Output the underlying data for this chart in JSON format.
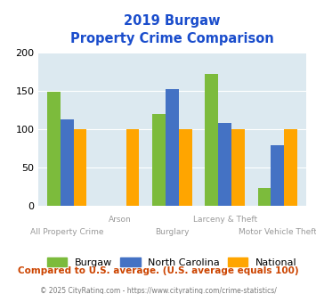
{
  "title_line1": "2019 Burgaw",
  "title_line2": "Property Crime Comparison",
  "categories": [
    "All Property Crime",
    "Arson",
    "Burglary",
    "Larceny & Theft",
    "Motor Vehicle Theft"
  ],
  "cat_labels_row1": [
    "All Property Crime",
    "",
    "Burglary",
    "",
    "Motor Vehicle Theft"
  ],
  "cat_labels_row2": [
    "",
    "Arson",
    "",
    "Larceny & Theft",
    ""
  ],
  "series": {
    "Burgaw": [
      149,
      0,
      120,
      173,
      23
    ],
    "North Carolina": [
      113,
      0,
      153,
      108,
      79
    ],
    "National": [
      100,
      100,
      100,
      100,
      100
    ]
  },
  "colors": {
    "Burgaw": "#7cbb3c",
    "North Carolina": "#4472c4",
    "National": "#ffa500"
  },
  "ylim": [
    0,
    200
  ],
  "yticks": [
    0,
    50,
    100,
    150,
    200
  ],
  "plot_bg": "#dce9f0",
  "title_color": "#1a4dcc",
  "subtitle_note": "Compared to U.S. average. (U.S. average equals 100)",
  "copyright": "© 2025 CityRating.com - https://www.cityrating.com/crime-statistics/",
  "note_color": "#cc4400",
  "copyright_color": "#777777",
  "bar_width": 0.25
}
